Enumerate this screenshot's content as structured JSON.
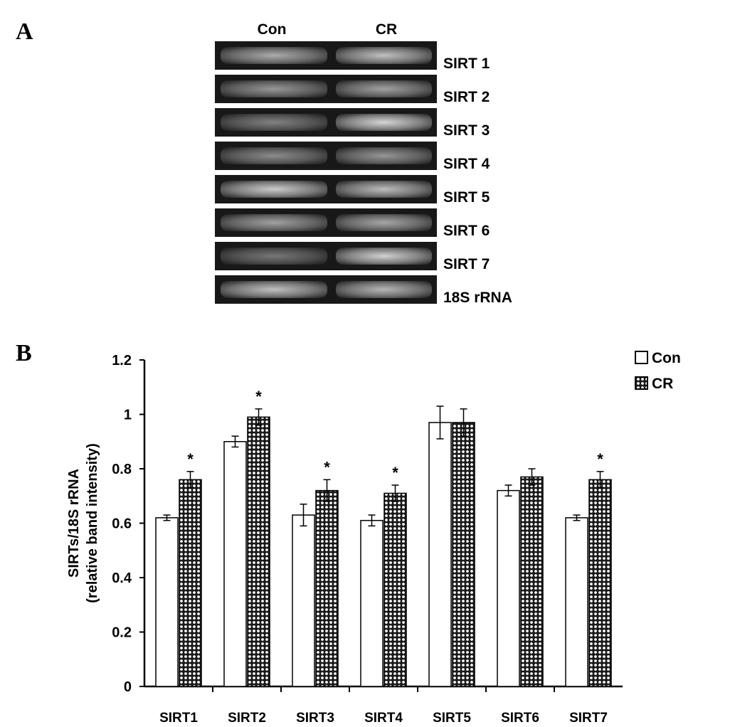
{
  "panel_a": {
    "letter": "A",
    "lanes": [
      "Con",
      "CR"
    ],
    "rows": [
      {
        "label": "SIRT 1",
        "intensity": [
          0.7,
          0.8
        ]
      },
      {
        "label": "SIRT 2",
        "intensity": [
          0.6,
          0.65
        ]
      },
      {
        "label": "SIRT 3",
        "intensity": [
          0.5,
          0.9
        ]
      },
      {
        "label": "SIRT 4",
        "intensity": [
          0.55,
          0.6
        ]
      },
      {
        "label": "SIRT 5",
        "intensity": [
          0.85,
          0.78
        ]
      },
      {
        "label": "SIRT 6",
        "intensity": [
          0.65,
          0.68
        ]
      },
      {
        "label": "SIRT 7",
        "intensity": [
          0.45,
          0.88
        ]
      },
      {
        "label": "18S rRNA",
        "intensity": [
          0.8,
          0.75
        ]
      }
    ]
  },
  "panel_b": {
    "letter": "B"
  },
  "chart_data": {
    "type": "bar",
    "categories": [
      "SIRT1",
      "SIRT2",
      "SIRT3",
      "SIRT4",
      "SIRT5",
      "SIRT6",
      "SIRT7"
    ],
    "series": [
      {
        "name": "Con",
        "values": [
          0.62,
          0.9,
          0.63,
          0.61,
          0.97,
          0.72,
          0.62
        ],
        "errors": [
          0.01,
          0.02,
          0.04,
          0.02,
          0.06,
          0.02,
          0.01
        ],
        "fill": "#ffffff"
      },
      {
        "name": "CR",
        "values": [
          0.76,
          0.99,
          0.72,
          0.71,
          0.97,
          0.77,
          0.76
        ],
        "errors": [
          0.03,
          0.03,
          0.04,
          0.03,
          0.05,
          0.03,
          0.03
        ],
        "fill": "dotted"
      }
    ],
    "significance": [
      true,
      true,
      true,
      true,
      false,
      false,
      true
    ],
    "significance_marker": "*",
    "ylabel": "SIRTs/18S rRNA",
    "ylabel2": "(relative band intensity)",
    "xlabel": "",
    "ylim": [
      0,
      1.2
    ],
    "yticks": [
      "0",
      "0.2",
      "0.4",
      "0.6",
      "0.8",
      "1",
      "1.2"
    ],
    "grid": false,
    "legend_position": "top-right"
  }
}
